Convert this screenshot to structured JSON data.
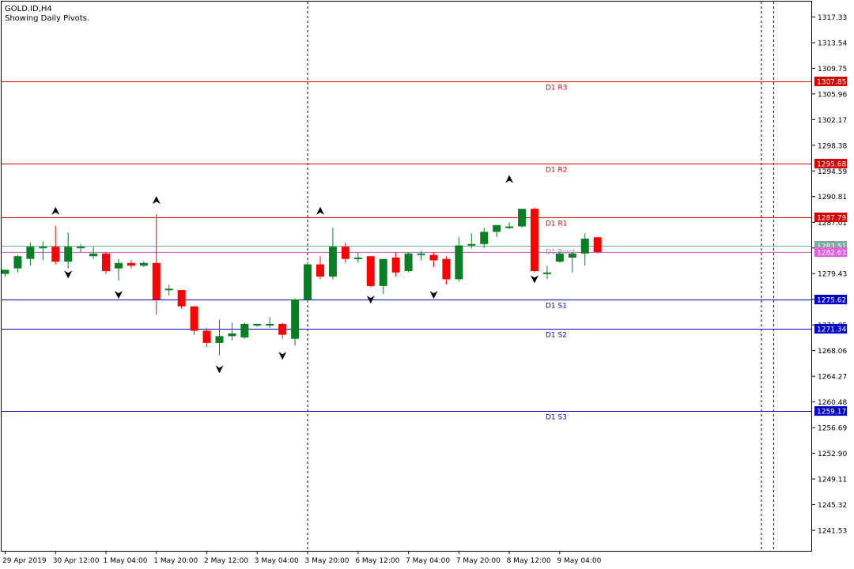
{
  "header": {
    "symbol_line": "GOLD.ID,H4",
    "indicator_line": "Showing Daily Pivots."
  },
  "colors": {
    "bull": "#087f23",
    "bear": "#ff0000",
    "resistance": "#d40000",
    "support": "#0000c8",
    "pivot": "#7faaa0",
    "bid": "#e060e0",
    "grid": "#000000"
  },
  "chart_data": {
    "type": "candlestick",
    "title": "GOLD.ID,H4",
    "ylim": [
      1238.5,
      1319.6
    ],
    "y_ticks": [
      "1317.33",
      "1313.54",
      "1309.75",
      "1305.96",
      "1302.17",
      "1298.38",
      "1294.59",
      "1290.81",
      "1287.01",
      "1283.22",
      "1279.43",
      "1275.64",
      "1271.85",
      "1268.06",
      "1264.27",
      "1260.48",
      "1256.69",
      "1252.90",
      "1249.11",
      "1245.32",
      "1241.53"
    ],
    "x_labels": [
      "29 Apr 2019",
      "30 Apr 12:00",
      "1 May 04:00",
      "1 May 20:00",
      "2 May 12:00",
      "3 May 04:00",
      "3 May 20:00",
      "6 May 12:00",
      "7 May 04:00",
      "7 May 20:00",
      "8 May 12:00",
      "9 May 04:00"
    ],
    "day_separators": [
      24,
      60
    ],
    "pivots": [
      {
        "label": "D1 R3",
        "value": 1307.85,
        "price_label": "1307.85",
        "kind": "resistance"
      },
      {
        "label": "D1 R2",
        "value": 1295.68,
        "price_label": "1295.68",
        "kind": "resistance"
      },
      {
        "label": "D1 R1",
        "value": 1287.79,
        "price_label": "1287.79",
        "kind": "resistance"
      },
      {
        "label": "D1 Pivot",
        "value": 1283.51,
        "price_label": "1283.51",
        "kind": "pivot"
      },
      {
        "label": "D1 S1",
        "value": 1275.62,
        "price_label": "1275.62",
        "kind": "support"
      },
      {
        "label": "D1 S2",
        "value": 1271.34,
        "price_label": "1271.34",
        "kind": "support"
      },
      {
        "label": "D1 S3",
        "value": 1259.17,
        "price_label": "1259.17",
        "kind": "support"
      }
    ],
    "bid": {
      "value": 1282.6,
      "price_label": "1282.63"
    },
    "fractals": [
      {
        "i": 4,
        "type": "up",
        "value": 1288.0
      },
      {
        "i": 5,
        "type": "down",
        "value": 1280.0
      },
      {
        "i": 9,
        "type": "down",
        "value": 1277.0
      },
      {
        "i": 12,
        "type": "up",
        "value": 1289.6
      },
      {
        "i": 17,
        "type": "down",
        "value": 1266.0
      },
      {
        "i": 22,
        "type": "down",
        "value": 1268.0
      },
      {
        "i": 25,
        "type": "up",
        "value": 1288.0
      },
      {
        "i": 29,
        "type": "down",
        "value": 1276.3
      },
      {
        "i": 34,
        "type": "down",
        "value": 1277.0
      },
      {
        "i": 40,
        "type": "up",
        "value": 1292.7
      },
      {
        "i": 42,
        "type": "down",
        "value": 1279.3
      }
    ],
    "candles": [
      {
        "o": 1279.4,
        "h": 1279.8,
        "c": 1280.0,
        "l": 1279.0
      },
      {
        "o": 1280.2,
        "h": 1282.2,
        "c": 1282.0,
        "l": 1279.6
      },
      {
        "o": 1281.6,
        "h": 1284.0,
        "c": 1283.4,
        "l": 1280.6
      },
      {
        "o": 1283.2,
        "h": 1284.2,
        "c": 1283.4,
        "l": 1281.4
      },
      {
        "o": 1283.4,
        "h": 1286.5,
        "c": 1281.2,
        "l": 1280.8
      },
      {
        "o": 1281.2,
        "h": 1285.5,
        "c": 1283.4,
        "l": 1280.2
      },
      {
        "o": 1283.2,
        "h": 1283.8,
        "c": 1283.4,
        "l": 1282.6
      },
      {
        "o": 1282.0,
        "h": 1283.4,
        "c": 1282.4,
        "l": 1281.6
      },
      {
        "o": 1282.4,
        "h": 1282.6,
        "c": 1279.8,
        "l": 1279.4
      },
      {
        "o": 1280.2,
        "h": 1281.6,
        "c": 1281.0,
        "l": 1278.4
      },
      {
        "o": 1281.0,
        "h": 1281.4,
        "c": 1280.6,
        "l": 1280.2
      },
      {
        "o": 1280.6,
        "h": 1281.2,
        "c": 1281.0,
        "l": 1280.4
      },
      {
        "o": 1281.0,
        "h": 1288.2,
        "c": 1275.6,
        "l": 1273.4
      },
      {
        "o": 1277.0,
        "h": 1277.8,
        "c": 1277.2,
        "l": 1276.2
      },
      {
        "o": 1277.0,
        "h": 1277.0,
        "c": 1274.6,
        "l": 1274.2
      },
      {
        "o": 1274.6,
        "h": 1274.6,
        "c": 1271.0,
        "l": 1270.4
      },
      {
        "o": 1271.0,
        "h": 1271.4,
        "c": 1269.2,
        "l": 1268.6
      },
      {
        "o": 1269.2,
        "h": 1272.6,
        "c": 1270.2,
        "l": 1267.4
      },
      {
        "o": 1270.2,
        "h": 1272.2,
        "c": 1270.6,
        "l": 1269.6
      },
      {
        "o": 1270.0,
        "h": 1272.2,
        "c": 1272.0,
        "l": 1269.8
      },
      {
        "o": 1271.8,
        "h": 1272.0,
        "c": 1272.0,
        "l": 1271.6
      },
      {
        "o": 1271.8,
        "h": 1273.0,
        "c": 1272.0,
        "l": 1271.4
      },
      {
        "o": 1272.0,
        "h": 1272.2,
        "c": 1270.4,
        "l": 1269.8
      },
      {
        "o": 1269.8,
        "h": 1275.8,
        "c": 1275.6,
        "l": 1268.8
      },
      {
        "o": 1275.6,
        "h": 1281.2,
        "c": 1280.8,
        "l": 1275.2
      },
      {
        "o": 1280.8,
        "h": 1282.0,
        "c": 1279.0,
        "l": 1278.6
      },
      {
        "o": 1279.0,
        "h": 1286.2,
        "c": 1283.4,
        "l": 1278.6
      },
      {
        "o": 1283.4,
        "h": 1284.0,
        "c": 1281.6,
        "l": 1281.0
      },
      {
        "o": 1281.8,
        "h": 1282.6,
        "c": 1281.8,
        "l": 1281.0
      },
      {
        "o": 1282.0,
        "h": 1282.0,
        "c": 1277.6,
        "l": 1277.4
      },
      {
        "o": 1277.6,
        "h": 1281.6,
        "c": 1281.6,
        "l": 1276.4
      },
      {
        "o": 1281.8,
        "h": 1282.6,
        "c": 1279.6,
        "l": 1279.0
      },
      {
        "o": 1279.8,
        "h": 1282.6,
        "c": 1282.4,
        "l": 1279.6
      },
      {
        "o": 1282.2,
        "h": 1282.8,
        "c": 1282.4,
        "l": 1281.4
      },
      {
        "o": 1282.2,
        "h": 1282.6,
        "c": 1281.4,
        "l": 1280.4
      },
      {
        "o": 1281.6,
        "h": 1282.0,
        "c": 1278.6,
        "l": 1277.8
      },
      {
        "o": 1278.6,
        "h": 1284.8,
        "c": 1283.6,
        "l": 1278.2
      },
      {
        "o": 1283.6,
        "h": 1285.4,
        "c": 1283.8,
        "l": 1283.2
      },
      {
        "o": 1283.8,
        "h": 1286.2,
        "c": 1285.6,
        "l": 1283.2
      },
      {
        "o": 1285.6,
        "h": 1286.6,
        "c": 1286.6,
        "l": 1284.8
      },
      {
        "o": 1286.2,
        "h": 1287.0,
        "c": 1286.4,
        "l": 1286.0
      },
      {
        "o": 1286.4,
        "h": 1289.0,
        "c": 1289.0,
        "l": 1286.2
      },
      {
        "o": 1289.0,
        "h": 1289.2,
        "c": 1279.8,
        "l": 1279.6
      },
      {
        "o": 1279.6,
        "h": 1280.6,
        "c": 1279.6,
        "l": 1278.6
      },
      {
        "o": 1281.2,
        "h": 1282.6,
        "c": 1282.4,
        "l": 1281.0
      },
      {
        "o": 1281.8,
        "h": 1282.6,
        "c": 1282.4,
        "l": 1279.6
      },
      {
        "o": 1282.4,
        "h": 1285.4,
        "c": 1284.6,
        "l": 1280.6
      },
      {
        "o": 1284.8,
        "h": 1284.8,
        "c": 1282.6,
        "l": 1282.4
      }
    ]
  }
}
